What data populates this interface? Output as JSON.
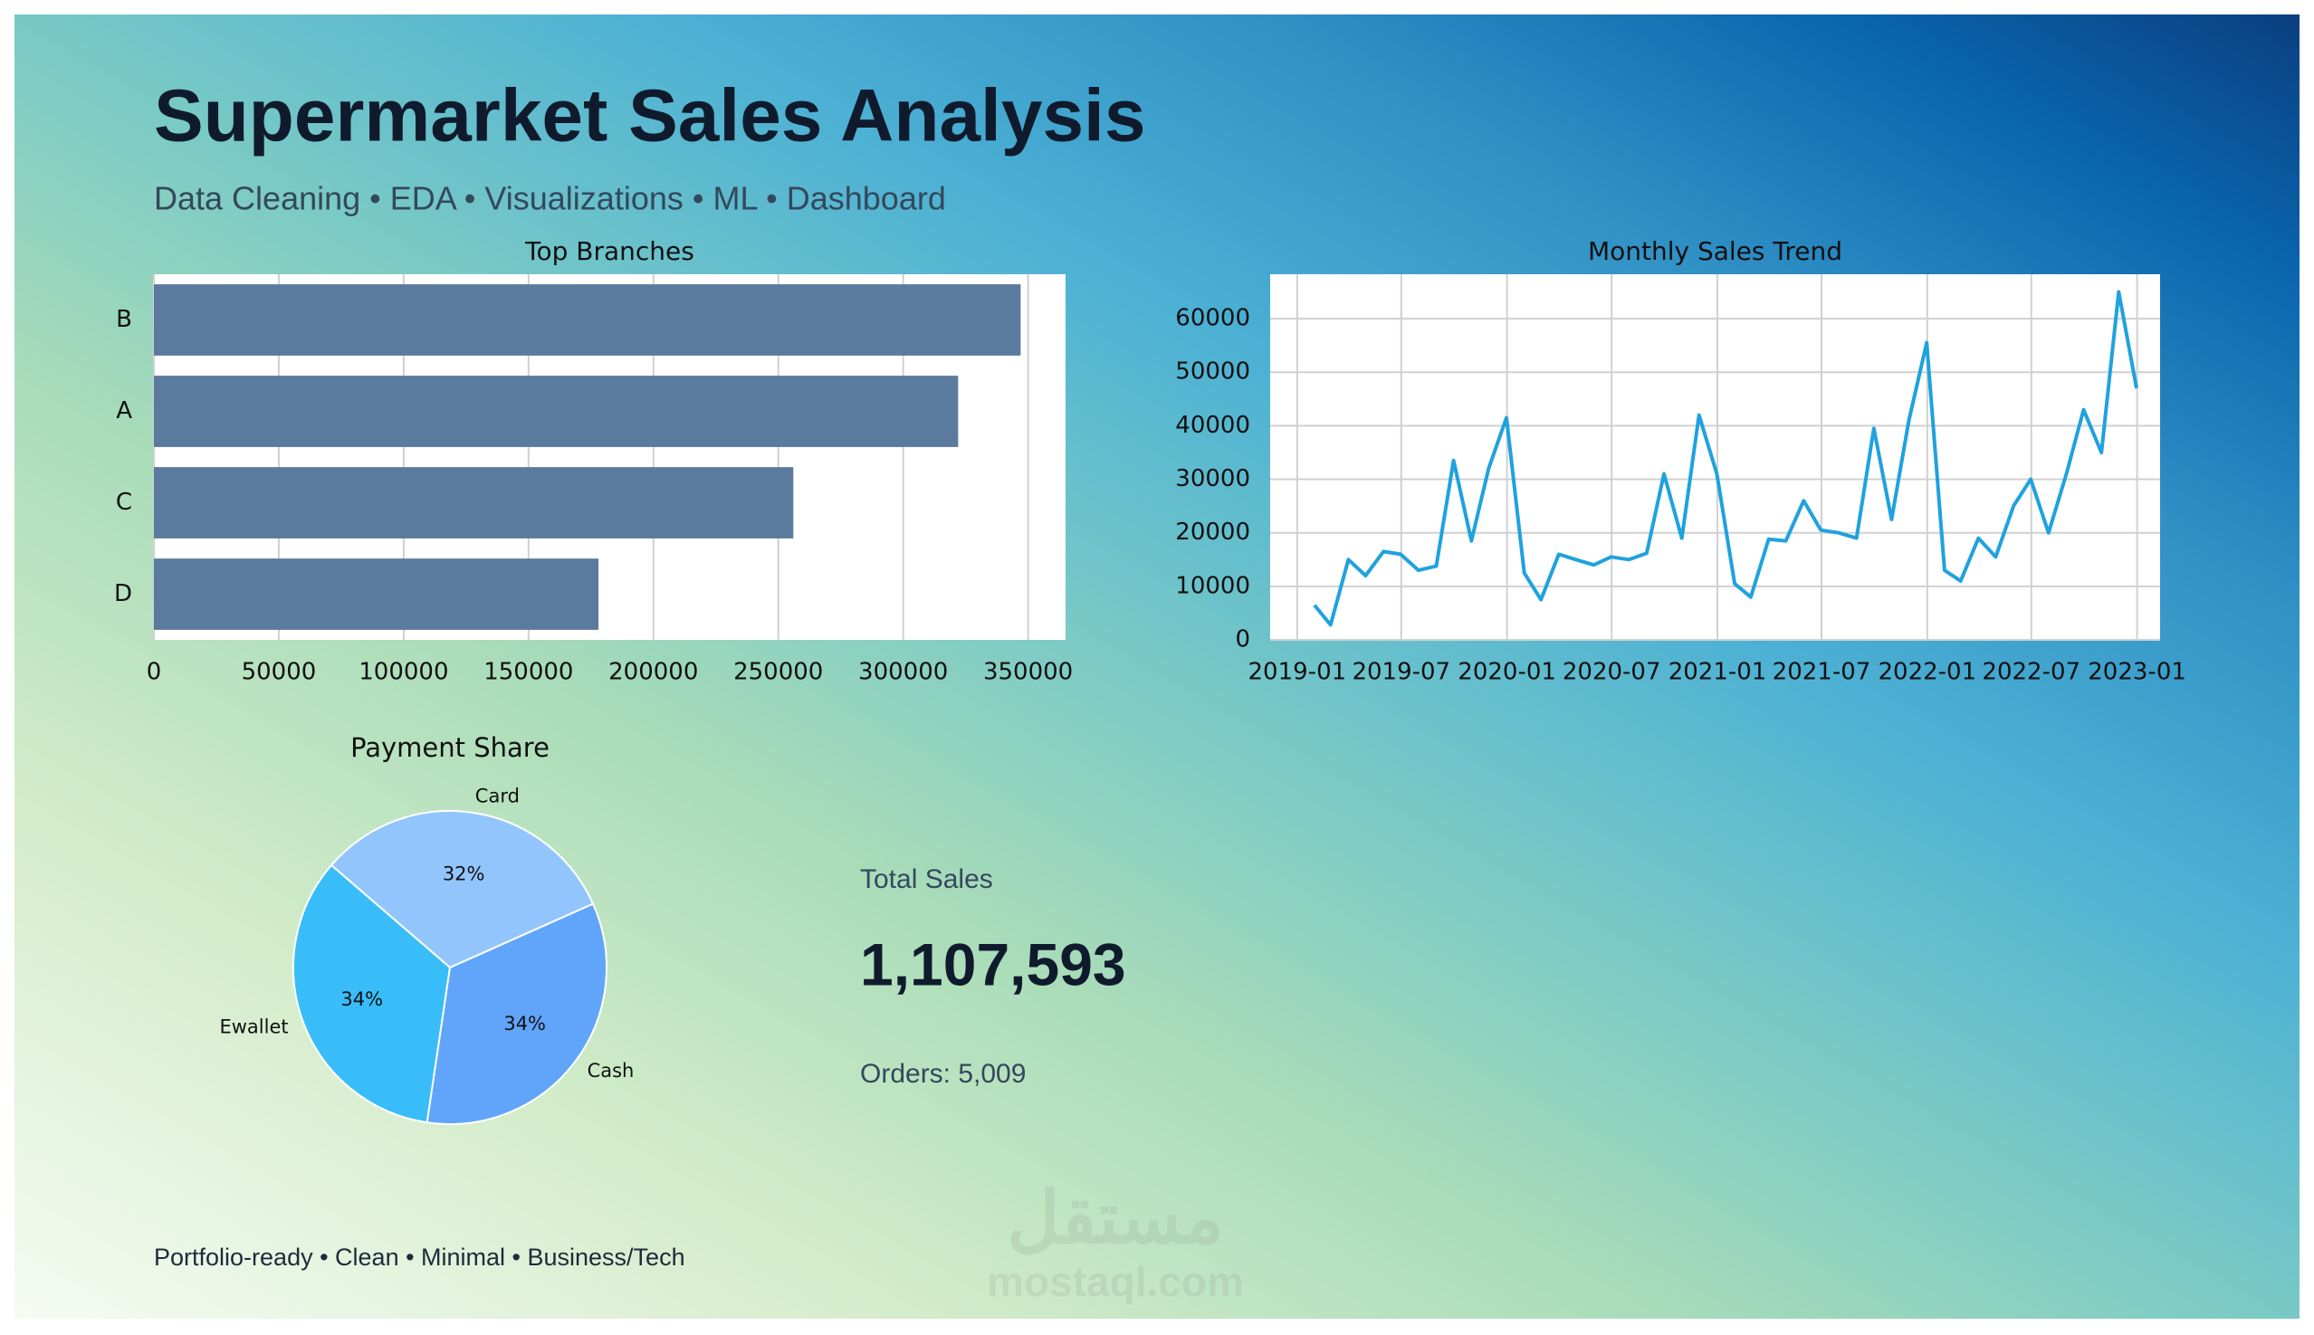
{
  "header": {
    "title": "Supermarket Sales Analysis",
    "subtitle": "Data Cleaning • EDA • Visualizations • ML • Dashboard"
  },
  "chart_data": [
    {
      "type": "bar",
      "orientation": "horizontal",
      "title": "Top Branches",
      "categories": [
        "B",
        "A",
        "C",
        "D"
      ],
      "values": [
        347000,
        322000,
        256000,
        178000
      ],
      "color": "#5a7a9e",
      "xlim": [
        0,
        365000
      ],
      "xticks": [
        0,
        50000,
        100000,
        150000,
        200000,
        250000,
        300000,
        350000
      ],
      "grid": true
    },
    {
      "type": "line",
      "title": "Monthly Sales Trend",
      "color": "#1fa2de",
      "x": [
        "2019-01-31",
        "2019-02-28",
        "2019-03-31",
        "2019-04-30",
        "2019-05-31",
        "2019-06-30",
        "2019-07-31",
        "2019-08-31",
        "2019-09-30",
        "2019-10-31",
        "2019-11-30",
        "2019-12-31",
        "2020-01-31",
        "2020-02-29",
        "2020-03-31",
        "2020-04-30",
        "2020-05-31",
        "2020-06-30",
        "2020-07-31",
        "2020-08-31",
        "2020-09-30",
        "2020-10-31",
        "2020-11-30",
        "2020-12-31",
        "2021-01-31",
        "2021-02-28",
        "2021-03-31",
        "2021-04-30",
        "2021-05-31",
        "2021-06-30",
        "2021-07-31",
        "2021-08-31",
        "2021-09-30",
        "2021-10-31",
        "2021-11-30",
        "2021-12-31",
        "2022-01-31",
        "2022-02-28",
        "2022-03-31",
        "2022-04-30",
        "2022-05-31",
        "2022-06-30",
        "2022-07-31",
        "2022-08-31",
        "2022-09-30",
        "2022-10-31",
        "2022-11-30",
        "2022-12-31"
      ],
      "values": [
        6500,
        2800,
        15000,
        12000,
        16500,
        16000,
        13000,
        13800,
        33500,
        18500,
        32000,
        41500,
        12500,
        7500,
        16000,
        15000,
        14000,
        15500,
        15000,
        16200,
        31000,
        19000,
        42000,
        31000,
        10500,
        8000,
        18800,
        18500,
        26000,
        20500,
        20000,
        19000,
        39500,
        22500,
        41000,
        55500,
        13000,
        11000,
        19000,
        15500,
        25000,
        30000,
        20000,
        31000,
        43000,
        35000,
        65000,
        47000
      ],
      "xlim": [
        "2018-11-15",
        "2023-02-10"
      ],
      "xticks": [
        {
          "value": "2019-01-01",
          "label": "2019-01"
        },
        {
          "value": "2019-07-01",
          "label": "2019-07"
        },
        {
          "value": "2020-01-01",
          "label": "2020-01"
        },
        {
          "value": "2020-07-01",
          "label": "2020-07"
        },
        {
          "value": "2021-01-01",
          "label": "2021-01"
        },
        {
          "value": "2021-07-01",
          "label": "2021-07"
        },
        {
          "value": "2022-01-01",
          "label": "2022-01"
        },
        {
          "value": "2022-07-01",
          "label": "2022-07"
        },
        {
          "value": "2023-01-01",
          "label": "2023-01"
        }
      ],
      "ylim": [
        0,
        68300
      ],
      "yticks": [
        0,
        10000,
        20000,
        30000,
        40000,
        50000,
        60000
      ],
      "grid": true
    },
    {
      "type": "pie",
      "title": "Payment Share",
      "categories": [
        "Card",
        "Ewallet",
        "Cash"
      ],
      "values": [
        32,
        34,
        34
      ],
      "value_labels": [
        "32%",
        "34%",
        "34%"
      ],
      "colors": [
        "#93c5fd",
        "#38bdf8",
        "#60a5fa"
      ]
    }
  ],
  "kpi": {
    "label": "Total Sales",
    "value": "1,107,593",
    "orders": "Orders: 5,009"
  },
  "footer": "Portfolio-ready • Clean • Minimal • Business/Tech",
  "watermark": {
    "arabic": "مستقل",
    "latin": "mostaql.com"
  }
}
